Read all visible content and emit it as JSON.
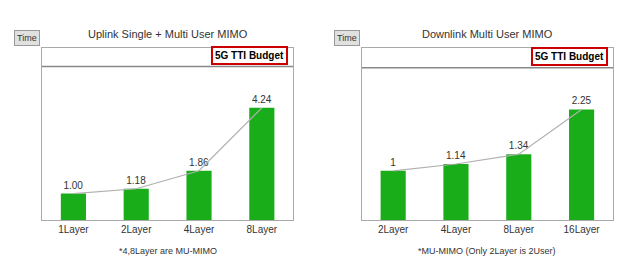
{
  "chart_data": [
    {
      "type": "bar",
      "title": "Uplink Single + Multi User MIMO",
      "categories": [
        "1Layer",
        "2Layer",
        "4Layer",
        "8Layer"
      ],
      "series": [
        {
          "type": "bar",
          "color": "#1aad1a",
          "values": [
            1.0,
            1.18,
            1.86,
            4.24
          ],
          "value_labels": [
            "1.00",
            "1.18",
            "1.86",
            "4.24"
          ]
        },
        {
          "type": "line",
          "color": "#b0b0b0",
          "values": [
            1.0,
            1.18,
            1.86,
            4.24
          ]
        }
      ],
      "data_labels": true,
      "ylim": [
        0,
        6.5
      ],
      "yticks": [],
      "tick_labels": "x",
      "grid": false,
      "reference_line": {
        "value": 5.8,
        "label": "5G TTI Budget",
        "color": "#cc0000"
      },
      "annotations": [
        "Time"
      ],
      "footnote": "*4,8Layer are MU-MIMO"
    },
    {
      "type": "bar",
      "title": "Downlink Multi User MIMO",
      "categories": [
        "2Layer",
        "4Layer",
        "8Layer",
        "16Layer"
      ],
      "series": [
        {
          "type": "bar",
          "color": "#1aad1a",
          "values": [
            1.0,
            1.14,
            1.34,
            2.25
          ],
          "value_labels": [
            "1",
            "1.14",
            "1.34",
            "2.25"
          ]
        },
        {
          "type": "line",
          "color": "#b0b0b0",
          "values": [
            1.0,
            1.14,
            1.34,
            2.25
          ]
        }
      ],
      "data_labels": true,
      "ylim": [
        0,
        3.5
      ],
      "yticks": [],
      "tick_labels": "x",
      "grid": false,
      "reference_line": {
        "value": 3.1,
        "label": "5G TTI Budget",
        "color": "#cc0000"
      },
      "annotations": [
        "Time"
      ],
      "footnote": "*MU-MIMO (Only 2Layer is 2User)"
    }
  ]
}
